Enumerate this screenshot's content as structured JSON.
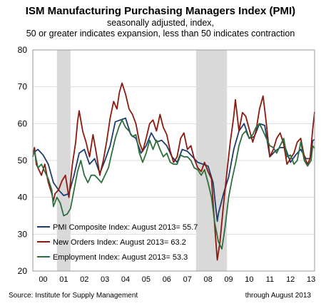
{
  "chart_data": {
    "type": "line",
    "title": "ISM Manufacturing Purchasing Managers Index (PMI)",
    "subtitle_lines": [
      "seasonally adjusted, index,",
      "50 or greater indicates expansion, less than 50 indicates contraction"
    ],
    "xlabel": "",
    "ylabel": "",
    "ylim": [
      20,
      80
    ],
    "yticks": [
      20,
      30,
      40,
      50,
      60,
      70,
      80
    ],
    "xlim": [
      2000.0,
      2013.67
    ],
    "xticks": [
      {
        "value": 2000.5,
        "label": "00"
      },
      {
        "value": 2001.5,
        "label": "01"
      },
      {
        "value": 2002.5,
        "label": "02"
      },
      {
        "value": 2003.5,
        "label": "03"
      },
      {
        "value": 2004.5,
        "label": "04"
      },
      {
        "value": 2005.5,
        "label": "05"
      },
      {
        "value": 2006.5,
        "label": "06"
      },
      {
        "value": 2007.5,
        "label": "07"
      },
      {
        "value": 2008.5,
        "label": "08"
      },
      {
        "value": 2009.5,
        "label": "09"
      },
      {
        "value": 2010.5,
        "label": "10"
      },
      {
        "value": 2011.5,
        "label": "11"
      },
      {
        "value": 2012.5,
        "label": "12"
      },
      {
        "value": 2013.5,
        "label": "13"
      }
    ],
    "recessions": [
      {
        "start": 2001.17,
        "end": 2001.83
      },
      {
        "start": 2007.92,
        "end": 2009.42
      }
    ],
    "grid": true,
    "legend_position": "bottom-left",
    "series": [
      {
        "name": "PMI Composite Index: August 2013= 55.7",
        "color": "#1f3c6e",
        "points": [
          [
            2000.0,
            52
          ],
          [
            2000.25,
            53
          ],
          [
            2000.5,
            51.5
          ],
          [
            2000.75,
            49
          ],
          [
            2001.0,
            44
          ],
          [
            2001.25,
            42
          ],
          [
            2001.5,
            40.5
          ],
          [
            2001.75,
            41
          ],
          [
            2002.0,
            46
          ],
          [
            2002.25,
            52
          ],
          [
            2002.5,
            53
          ],
          [
            2002.75,
            49
          ],
          [
            2003.0,
            50.5
          ],
          [
            2003.25,
            46.5
          ],
          [
            2003.5,
            50
          ],
          [
            2003.75,
            54
          ],
          [
            2004.0,
            60.5
          ],
          [
            2004.25,
            61
          ],
          [
            2004.5,
            61.5
          ],
          [
            2004.75,
            57
          ],
          [
            2005.0,
            56
          ],
          [
            2005.25,
            52
          ],
          [
            2005.5,
            54
          ],
          [
            2005.75,
            57.5
          ],
          [
            2006.0,
            55
          ],
          [
            2006.25,
            55.5
          ],
          [
            2006.5,
            54
          ],
          [
            2006.75,
            51
          ],
          [
            2007.0,
            49.5
          ],
          [
            2007.25,
            53
          ],
          [
            2007.5,
            52.5
          ],
          [
            2007.75,
            51
          ],
          [
            2008.0,
            49.5
          ],
          [
            2008.25,
            49
          ],
          [
            2008.5,
            48.5
          ],
          [
            2008.75,
            44
          ],
          [
            2008.95,
            33.5
          ],
          [
            2009.0,
            35.5
          ],
          [
            2009.25,
            41
          ],
          [
            2009.5,
            45.5
          ],
          [
            2009.75,
            53
          ],
          [
            2010.0,
            58
          ],
          [
            2010.25,
            60
          ],
          [
            2010.5,
            56
          ],
          [
            2010.75,
            56.5
          ],
          [
            2011.0,
            60
          ],
          [
            2011.25,
            59.5
          ],
          [
            2011.5,
            51
          ],
          [
            2011.75,
            52.5
          ],
          [
            2012.0,
            53.5
          ],
          [
            2012.25,
            53.5
          ],
          [
            2012.5,
            49.5
          ],
          [
            2012.75,
            51.5
          ],
          [
            2013.0,
            53
          ],
          [
            2013.25,
            50.5
          ],
          [
            2013.45,
            50.5
          ],
          [
            2013.58,
            55.4
          ],
          [
            2013.67,
            55.7
          ]
        ]
      },
      {
        "name": "New Orders Index: August 2013= 63.2",
        "color": "#8b1a0e",
        "points": [
          [
            2000.0,
            51
          ],
          [
            2000.08,
            53.5
          ],
          [
            2000.17,
            49
          ],
          [
            2000.25,
            48
          ],
          [
            2000.42,
            46
          ],
          [
            2000.58,
            49
          ],
          [
            2000.75,
            44
          ],
          [
            2000.92,
            41
          ],
          [
            2001.0,
            39
          ],
          [
            2001.08,
            41
          ],
          [
            2001.25,
            42
          ],
          [
            2001.42,
            44.5
          ],
          [
            2001.58,
            46
          ],
          [
            2001.75,
            40
          ],
          [
            2001.92,
            49
          ],
          [
            2002.08,
            55
          ],
          [
            2002.17,
            60.5
          ],
          [
            2002.25,
            63.5
          ],
          [
            2002.42,
            58
          ],
          [
            2002.58,
            55
          ],
          [
            2002.75,
            51
          ],
          [
            2002.92,
            57
          ],
          [
            2003.08,
            52
          ],
          [
            2003.25,
            46
          ],
          [
            2003.42,
            50
          ],
          [
            2003.58,
            55
          ],
          [
            2003.75,
            61.5
          ],
          [
            2003.92,
            66
          ],
          [
            2004.08,
            64
          ],
          [
            2004.2,
            68.5
          ],
          [
            2004.33,
            71
          ],
          [
            2004.5,
            68
          ],
          [
            2004.67,
            64
          ],
          [
            2004.83,
            62.5
          ],
          [
            2005.0,
            60
          ],
          [
            2005.17,
            55
          ],
          [
            2005.33,
            52.5
          ],
          [
            2005.5,
            56
          ],
          [
            2005.67,
            60
          ],
          [
            2005.83,
            61
          ],
          [
            2006.0,
            58
          ],
          [
            2006.17,
            62.5
          ],
          [
            2006.33,
            59
          ],
          [
            2006.5,
            57
          ],
          [
            2006.67,
            52.5
          ],
          [
            2006.83,
            49.5
          ],
          [
            2007.0,
            51
          ],
          [
            2007.17,
            56
          ],
          [
            2007.33,
            57.5
          ],
          [
            2007.5,
            53
          ],
          [
            2007.67,
            54
          ],
          [
            2007.83,
            50.5
          ],
          [
            2008.0,
            48
          ],
          [
            2008.17,
            47
          ],
          [
            2008.33,
            49.5
          ],
          [
            2008.5,
            47
          ],
          [
            2008.67,
            45
          ],
          [
            2008.83,
            32
          ],
          [
            2008.95,
            23
          ],
          [
            2009.08,
            28
          ],
          [
            2009.25,
            38
          ],
          [
            2009.42,
            47
          ],
          [
            2009.58,
            55
          ],
          [
            2009.75,
            62
          ],
          [
            2009.83,
            66.5
          ],
          [
            2010.0,
            58
          ],
          [
            2010.17,
            63
          ],
          [
            2010.33,
            62
          ],
          [
            2010.5,
            58.5
          ],
          [
            2010.67,
            55
          ],
          [
            2010.83,
            58
          ],
          [
            2011.0,
            64
          ],
          [
            2011.17,
            67.5
          ],
          [
            2011.33,
            60
          ],
          [
            2011.5,
            51
          ],
          [
            2011.67,
            53
          ],
          [
            2011.83,
            56
          ],
          [
            2012.0,
            57.5
          ],
          [
            2012.17,
            54.5
          ],
          [
            2012.33,
            49
          ],
          [
            2012.5,
            50.5
          ],
          [
            2012.67,
            52
          ],
          [
            2012.83,
            55
          ],
          [
            2013.0,
            56
          ],
          [
            2013.17,
            51
          ],
          [
            2013.33,
            49
          ],
          [
            2013.45,
            50.5
          ],
          [
            2013.58,
            58.5
          ],
          [
            2013.67,
            63.2
          ]
        ]
      },
      {
        "name": "Employment Index: August 2013= 53.3",
        "color": "#2e6f40",
        "points": [
          [
            2000.0,
            51
          ],
          [
            2000.08,
            52.5
          ],
          [
            2000.25,
            48
          ],
          [
            2000.42,
            49
          ],
          [
            2000.58,
            47
          ],
          [
            2000.75,
            45
          ],
          [
            2000.92,
            42
          ],
          [
            2001.0,
            37.5
          ],
          [
            2001.17,
            40
          ],
          [
            2001.33,
            38.5
          ],
          [
            2001.5,
            35
          ],
          [
            2001.67,
            35.5
          ],
          [
            2001.83,
            37
          ],
          [
            2002.0,
            42
          ],
          [
            2002.17,
            47
          ],
          [
            2002.33,
            50
          ],
          [
            2002.5,
            46
          ],
          [
            2002.67,
            44
          ],
          [
            2002.83,
            46
          ],
          [
            2003.0,
            46
          ],
          [
            2003.17,
            45
          ],
          [
            2003.33,
            44
          ],
          [
            2003.5,
            46
          ],
          [
            2003.67,
            48
          ],
          [
            2003.83,
            52
          ],
          [
            2004.0,
            56
          ],
          [
            2004.17,
            59
          ],
          [
            2004.33,
            61
          ],
          [
            2004.5,
            59
          ],
          [
            2004.67,
            58
          ],
          [
            2004.83,
            56.5
          ],
          [
            2005.0,
            57
          ],
          [
            2005.17,
            52
          ],
          [
            2005.33,
            49.5
          ],
          [
            2005.5,
            52
          ],
          [
            2005.67,
            55.5
          ],
          [
            2005.83,
            53
          ],
          [
            2006.0,
            55.5
          ],
          [
            2006.17,
            53
          ],
          [
            2006.33,
            51
          ],
          [
            2006.5,
            52
          ],
          [
            2006.67,
            49.5
          ],
          [
            2006.83,
            49
          ],
          [
            2007.0,
            49
          ],
          [
            2007.17,
            51.5
          ],
          [
            2007.33,
            51
          ],
          [
            2007.5,
            51
          ],
          [
            2007.67,
            50
          ],
          [
            2007.83,
            48
          ],
          [
            2008.0,
            47.5
          ],
          [
            2008.17,
            46
          ],
          [
            2008.33,
            47.5
          ],
          [
            2008.5,
            44
          ],
          [
            2008.67,
            40
          ],
          [
            2008.83,
            33
          ],
          [
            2009.0,
            28
          ],
          [
            2009.17,
            26
          ],
          [
            2009.33,
            32
          ],
          [
            2009.5,
            40
          ],
          [
            2009.67,
            45
          ],
          [
            2009.83,
            49
          ],
          [
            2010.0,
            54
          ],
          [
            2010.17,
            57
          ],
          [
            2010.33,
            58
          ],
          [
            2010.5,
            56
          ],
          [
            2010.67,
            57
          ],
          [
            2010.83,
            59
          ],
          [
            2011.0,
            60
          ],
          [
            2011.17,
            58
          ],
          [
            2011.33,
            56
          ],
          [
            2011.5,
            54
          ],
          [
            2011.67,
            53.5
          ],
          [
            2011.83,
            52
          ],
          [
            2012.0,
            54
          ],
          [
            2012.17,
            56
          ],
          [
            2012.33,
            51
          ],
          [
            2012.5,
            51.5
          ],
          [
            2012.67,
            49
          ],
          [
            2012.83,
            50
          ],
          [
            2013.0,
            55
          ],
          [
            2013.17,
            50
          ],
          [
            2013.33,
            48.5
          ],
          [
            2013.5,
            50
          ],
          [
            2013.58,
            54
          ],
          [
            2013.67,
            53.3
          ]
        ]
      }
    ]
  },
  "footer": {
    "source": "Source: Institute for Supply Management",
    "through": "through August 2013"
  }
}
